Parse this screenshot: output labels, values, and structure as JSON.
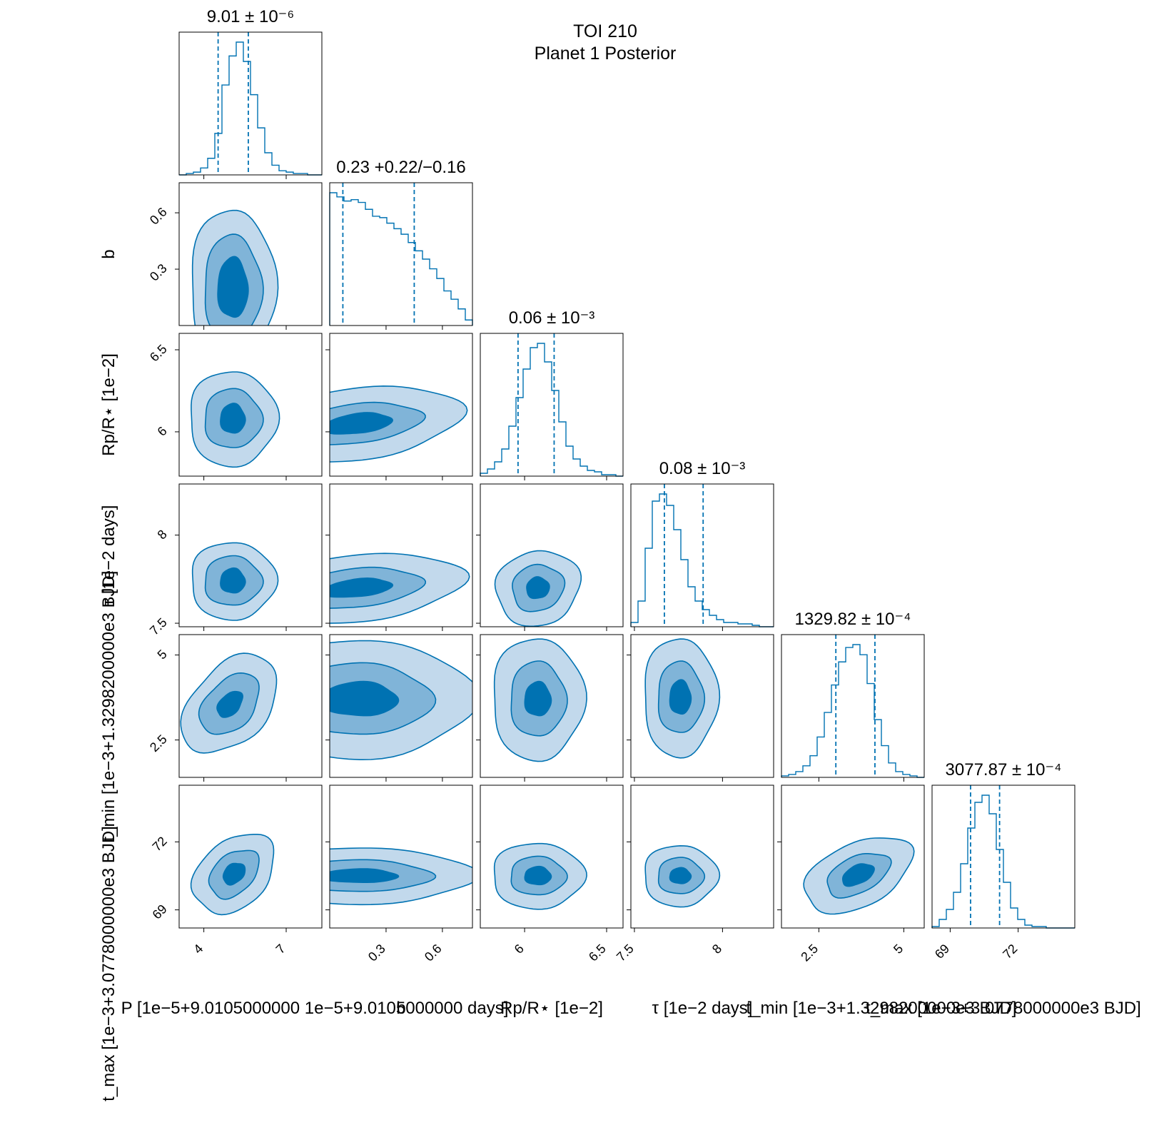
{
  "figure": {
    "title_line1": "TOI 210",
    "title_line2": "Planet 1 Posterior"
  },
  "colors": {
    "accent": "#0072b2",
    "level_low": "#c2d9ec",
    "level_mid": "#80b4d8",
    "level_high": "#0072b2",
    "frame": "#000000"
  },
  "chart_data": {
    "type": "corner",
    "parameters": [
      {
        "key": "P",
        "label": "P [1e−5+9.0105000000 1e−5+9.0105000000  days]",
        "diag_title": "9.01 ± 10⁻⁶",
        "range": [
          3.1,
          8.3
        ],
        "ticks": [
          4,
          7
        ],
        "hist_quantiles": [
          4.52,
          5.62
        ]
      },
      {
        "key": "b",
        "label": "b",
        "diag_title": "0.23 +0.22/−0.16",
        "range": [
          0,
          0.76
        ],
        "ticks": [
          0.3,
          0.6
        ],
        "hist_quantiles": [
          0.07,
          0.45
        ]
      },
      {
        "key": "rp",
        "label": "Rp/R⋆ [1e−2]",
        "diag_title": "0.06 ± 10⁻³",
        "range": [
          5.73,
          6.6
        ],
        "ticks": [
          6.0,
          6.5
        ],
        "hist_quantiles": [
          5.96,
          6.18
        ]
      },
      {
        "key": "tau",
        "label": "τ [1e−2  days]",
        "diag_title": "0.08 ± 10⁻³",
        "range": [
          7.48,
          8.29
        ],
        "ticks": [
          7.5,
          8.0
        ],
        "hist_quantiles": [
          7.67,
          7.89
        ]
      },
      {
        "key": "tmin",
        "label": "t_min [1e−3+1.3298200000e3  BJD]",
        "diag_title": "1329.82 ± 10⁻⁴",
        "range": [
          1.4,
          5.6
        ],
        "ticks": [
          2.5,
          5.0
        ],
        "hist_quantiles": [
          3.0,
          4.15
        ]
      },
      {
        "key": "tmax",
        "label": "t_max [1e−3+3.0778000000e3  BJD]",
        "diag_title": "3077.87 ± 10⁻⁴",
        "range": [
          68.2,
          74.5
        ],
        "ticks": [
          69,
          72
        ],
        "hist_quantiles": [
          69.9,
          71.18
        ]
      }
    ],
    "ylabels": {
      "b": "b",
      "rp": "Rp/R⋆ [1e−2]",
      "tau": "τ [1e−2  days]",
      "tmin": "t_min [1e−3+1.3298200000e3  BJD]",
      "tmax": "t_max [1e−3+3.0778000000e3  BJD]"
    },
    "histograms": {
      "P": [
        0,
        1,
        2,
        5,
        12,
        30,
        65,
        86,
        96,
        82,
        58,
        34,
        16,
        7,
        3,
        2,
        1,
        1,
        0,
        0
      ],
      "b": [
        96,
        93,
        90,
        91,
        89,
        84,
        79,
        78,
        74,
        70,
        66,
        60,
        54,
        48,
        41,
        34,
        25,
        19,
        12,
        4
      ],
      "rp": [
        2,
        5,
        10,
        19,
        35,
        55,
        75,
        90,
        93,
        80,
        60,
        38,
        21,
        12,
        7,
        4,
        3,
        1,
        1,
        0
      ],
      "tau": [
        3,
        18,
        55,
        88,
        93,
        85,
        68,
        47,
        28,
        18,
        12,
        8,
        5,
        3,
        3,
        2,
        2,
        1,
        0,
        0
      ],
      "tmin": [
        1,
        2,
        4,
        8,
        15,
        28,
        45,
        64,
        80,
        90,
        92,
        85,
        65,
        40,
        22,
        10,
        4,
        2,
        1,
        0
      ],
      "tmax": [
        1,
        6,
        13,
        25,
        45,
        70,
        88,
        93,
        80,
        55,
        32,
        14,
        6,
        2,
        1,
        1,
        0,
        0,
        0,
        0
      ]
    },
    "contours": [
      {
        "x": "P",
        "y": "b",
        "cx": 5.05,
        "cy": 0.2,
        "sx": [
          0.55,
          1.05,
          1.55
        ],
        "sy": [
          0.16,
          0.28,
          0.42
        ],
        "rot": 0
      },
      {
        "x": "P",
        "y": "rp",
        "cx": 5.05,
        "cy": 6.08,
        "sx": [
          0.45,
          1.05,
          1.6
        ],
        "sy": [
          0.09,
          0.18,
          0.29
        ],
        "rot": 0
      },
      {
        "x": "P",
        "y": "tau",
        "cx": 5.05,
        "cy": 7.74,
        "sx": [
          0.45,
          1.05,
          1.55
        ],
        "sy": [
          0.07,
          0.14,
          0.22
        ],
        "rot": 0
      },
      {
        "x": "P",
        "y": "tmin",
        "cx": 4.95,
        "cy": 3.55,
        "sx": [
          0.35,
          0.85,
          1.35
        ],
        "sy": [
          0.45,
          1.05,
          1.7
        ],
        "rot": 0.75
      },
      {
        "x": "P",
        "y": "tmax",
        "cx": 5.1,
        "cy": 70.6,
        "sx": [
          0.45,
          1.05,
          1.7
        ],
        "sy": [
          0.4,
          0.85,
          1.45
        ],
        "rot": -0.75
      },
      {
        "x": "b",
        "y": "rp",
        "cx": 0.15,
        "cy": 6.05,
        "sx": [
          0.18,
          0.34,
          0.55
        ],
        "sy": [
          0.06,
          0.12,
          0.22
        ],
        "rot": -0.12
      },
      {
        "x": "b",
        "y": "tau",
        "cx": 0.15,
        "cy": 7.7,
        "sx": [
          0.18,
          0.34,
          0.56
        ],
        "sy": [
          0.05,
          0.11,
          0.19
        ],
        "rot": -0.1
      },
      {
        "x": "b",
        "y": "tmin",
        "cx": 0.16,
        "cy": 3.7,
        "sx": [
          0.2,
          0.38,
          0.6
        ],
        "sy": [
          0.5,
          1.05,
          1.75
        ],
        "rot": 0
      },
      {
        "x": "b",
        "y": "tmax",
        "cx": 0.16,
        "cy": 70.5,
        "sx": [
          0.2,
          0.38,
          0.6
        ],
        "sy": [
          0.3,
          0.7,
          1.25
        ],
        "rot": 0
      },
      {
        "x": "rp",
        "y": "tau",
        "cx": 6.08,
        "cy": 7.7,
        "sx": [
          0.07,
          0.16,
          0.26
        ],
        "sy": [
          0.06,
          0.13,
          0.21
        ],
        "rot": -0.35
      },
      {
        "x": "rp",
        "y": "tmin",
        "cx": 6.08,
        "cy": 3.7,
        "sx": [
          0.08,
          0.17,
          0.28
        ],
        "sy": [
          0.5,
          1.1,
          1.8
        ],
        "rot": 0
      },
      {
        "x": "rp",
        "y": "tmax",
        "cx": 6.08,
        "cy": 70.5,
        "sx": [
          0.08,
          0.17,
          0.28
        ],
        "sy": [
          0.4,
          0.85,
          1.45
        ],
        "rot": 0
      },
      {
        "x": "tau",
        "y": "tmin",
        "cx": 7.76,
        "cy": 3.75,
        "sx": [
          0.06,
          0.13,
          0.21
        ],
        "sy": [
          0.5,
          1.05,
          1.75
        ],
        "rot": 0
      },
      {
        "x": "tau",
        "y": "tmax",
        "cx": 7.76,
        "cy": 70.5,
        "sx": [
          0.06,
          0.13,
          0.21
        ],
        "sy": [
          0.35,
          0.8,
          1.35
        ],
        "rot": 0
      },
      {
        "x": "tmin",
        "y": "tmax",
        "cx": 3.65,
        "cy": 70.55,
        "sx": [
          0.5,
          1.0,
          1.7
        ],
        "sy": [
          0.4,
          0.8,
          1.4
        ],
        "rot": -0.45
      }
    ],
    "grid": false,
    "legend": "none"
  }
}
